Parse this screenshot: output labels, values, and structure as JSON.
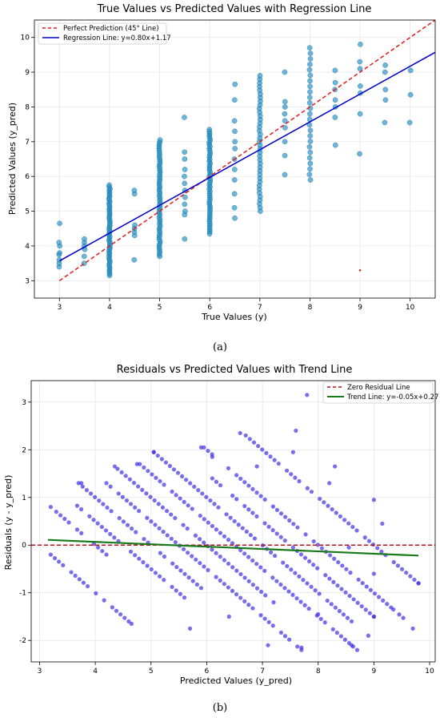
{
  "chart_data": [
    {
      "type": "scatter",
      "title": "True Values vs Predicted Values with Regression Line",
      "xlabel": "True Values (y)",
      "ylabel": "Predicted Values (y_pred)",
      "xlim": [
        2.5,
        10.5
      ],
      "ylim": [
        2.5,
        10.5
      ],
      "xticks": [
        3,
        4,
        5,
        6,
        7,
        8,
        9,
        10
      ],
      "yticks": [
        3,
        4,
        5,
        6,
        7,
        8,
        9,
        10
      ],
      "grid": true,
      "legend_position": "top-left",
      "caption": "(a)",
      "colors": {
        "points": "#1f8fc4",
        "perfect": "#e41a1c",
        "regression": "#0000cc",
        "outlier": "#cc0000"
      },
      "lines": [
        {
          "name": "Perfect Prediction (45° Line)",
          "x": [
            3,
            10.5
          ],
          "y": [
            3,
            10.5
          ],
          "style": "dashed"
        },
        {
          "name": "Regression Line: y=0.80x+1.17",
          "x": [
            3,
            10.5
          ],
          "y": [
            3.57,
            9.57
          ],
          "style": "solid"
        }
      ],
      "scatter_groups": [
        {
          "x": 3,
          "values": [
            3.4,
            3.5,
            3.6,
            3.75,
            3.8,
            4.0,
            4.1,
            4.65
          ]
        },
        {
          "x": 3.5,
          "values": [
            3.5,
            3.7,
            3.9,
            4.0,
            4.1,
            4.2
          ]
        },
        {
          "x": 4,
          "range": [
            3.15,
            5.75
          ],
          "count": 50
        },
        {
          "x": 4.5,
          "values": [
            3.6,
            4.3,
            4.4,
            4.5,
            4.6,
            5.5,
            5.6
          ]
        },
        {
          "x": 5,
          "range": [
            3.7,
            7.05
          ],
          "count": 55
        },
        {
          "x": 5.5,
          "values": [
            4.2,
            4.9,
            5.0,
            5.2,
            5.4,
            5.6,
            5.8,
            6.0,
            6.2,
            6.5,
            6.7,
            7.7
          ]
        },
        {
          "x": 6,
          "range": [
            4.35,
            7.35
          ],
          "count": 50
        },
        {
          "x": 6.5,
          "values": [
            4.8,
            5.1,
            5.5,
            5.9,
            6.2,
            6.5,
            6.8,
            7.0,
            7.3,
            7.6,
            8.2,
            8.65
          ]
        },
        {
          "x": 7,
          "range": [
            5.0,
            8.9
          ],
          "count": 38
        },
        {
          "x": 7.5,
          "values": [
            6.05,
            6.6,
            7.0,
            7.4,
            7.6,
            7.8,
            8.0,
            8.15,
            9.0
          ]
        },
        {
          "x": 8,
          "range": [
            5.9,
            9.7
          ],
          "count": 25
        },
        {
          "x": 8.5,
          "values": [
            6.9,
            7.7,
            8.0,
            8.2,
            8.5,
            8.7,
            9.05
          ]
        },
        {
          "x": 9,
          "values": [
            6.65,
            7.8,
            8.4,
            8.6,
            9.1,
            9.3,
            9.8
          ]
        },
        {
          "x": 9.5,
          "values": [
            7.55,
            8.2,
            8.5,
            9.0,
            9.2
          ]
        },
        {
          "x": 10,
          "values": [
            7.55,
            8.35,
            9.05
          ]
        }
      ],
      "outliers": [
        {
          "x": 9,
          "y": 3.3
        }
      ]
    },
    {
      "type": "scatter",
      "title": "Residuals vs Predicted Values with Trend Line",
      "xlabel": "Predicted Values (y_pred)",
      "ylabel": "Residuals (y - y_pred)",
      "xlim": [
        2.85,
        10.1
      ],
      "ylim": [
        -2.45,
        3.45
      ],
      "xticks": [
        3,
        4,
        5,
        6,
        7,
        8,
        9,
        10
      ],
      "yticks": [
        -2,
        -1,
        0,
        1,
        2,
        3
      ],
      "grid": true,
      "legend_position": "top-right",
      "caption": "(b)",
      "colors": {
        "points": "#3f2fe6",
        "zero": "#b5121b",
        "trend": "#1a7a1a"
      },
      "lines": [
        {
          "name": "Zero Residual Line",
          "x": [
            2.85,
            10.1
          ],
          "y": [
            0,
            0
          ],
          "style": "dashed"
        },
        {
          "name": "Trend Line: y=-0.05x+0.27",
          "x": [
            3.15,
            9.8
          ],
          "y": [
            0.11,
            -0.22
          ],
          "style": "solid"
        }
      ],
      "residual_bands": [
        {
          "true_value": 4,
          "x_start": 3.3,
          "x_end": 4.2
        },
        {
          "true_value": 5,
          "x_start": 3.7,
          "x_end": 5.9
        },
        {
          "true_value": 6,
          "x_start": 4.4,
          "x_end": 7.2
        },
        {
          "true_value": 7,
          "x_start": 5.05,
          "x_end": 8.6
        },
        {
          "true_value": 8,
          "x_start": 5.95,
          "x_end": 9.6
        },
        {
          "true_value": 3,
          "x_start": 3.2,
          "x_end": 4.6
        },
        {
          "true_value": 4.5,
          "x_start": 3.6,
          "x_end": 5.6
        },
        {
          "true_value": 5.5,
          "x_start": 4.2,
          "x_end": 7.7
        },
        {
          "true_value": 6.5,
          "x_start": 4.8,
          "x_end": 8.7
        },
        {
          "true_value": 7.5,
          "x_start": 6.1,
          "x_end": 9.0
        },
        {
          "true_value": 9,
          "x_start": 6.7,
          "x_end": 9.8
        }
      ],
      "extra_points": [
        {
          "x": 7.8,
          "y": 3.15
        },
        {
          "x": 7.6,
          "y": 2.4
        },
        {
          "x": 6.6,
          "y": 2.35
        },
        {
          "x": 5.9,
          "y": 2.05
        },
        {
          "x": 5.05,
          "y": 1.95
        },
        {
          "x": 7.55,
          "y": 1.95
        },
        {
          "x": 6.1,
          "y": 1.85
        },
        {
          "x": 6.9,
          "y": 1.65
        },
        {
          "x": 4.75,
          "y": 1.7
        },
        {
          "x": 4.35,
          "y": 1.65
        },
        {
          "x": 8.3,
          "y": 1.65
        },
        {
          "x": 3.75,
          "y": 1.3
        },
        {
          "x": 8.2,
          "y": 1.3
        },
        {
          "x": 9.0,
          "y": 0.95
        },
        {
          "x": 3.2,
          "y": 0.8
        },
        {
          "x": 9.0,
          "y": -0.6
        },
        {
          "x": 9.0,
          "y": -1.5
        },
        {
          "x": 8.9,
          "y": -1.9
        },
        {
          "x": 9.35,
          "y": -1.35
        },
        {
          "x": 9.7,
          "y": -1.75
        },
        {
          "x": 9.8,
          "y": -0.8
        },
        {
          "x": 8.6,
          "y": -2.1
        },
        {
          "x": 7.7,
          "y": -2.15
        },
        {
          "x": 7.1,
          "y": -2.1
        },
        {
          "x": 6.4,
          "y": -1.5
        },
        {
          "x": 5.7,
          "y": -1.75
        },
        {
          "x": 4.65,
          "y": -1.65
        },
        {
          "x": 8.0,
          "y": -1.45
        },
        {
          "x": 8.55,
          "y": -0.05
        },
        {
          "x": 9.15,
          "y": 0.45
        }
      ]
    }
  ]
}
